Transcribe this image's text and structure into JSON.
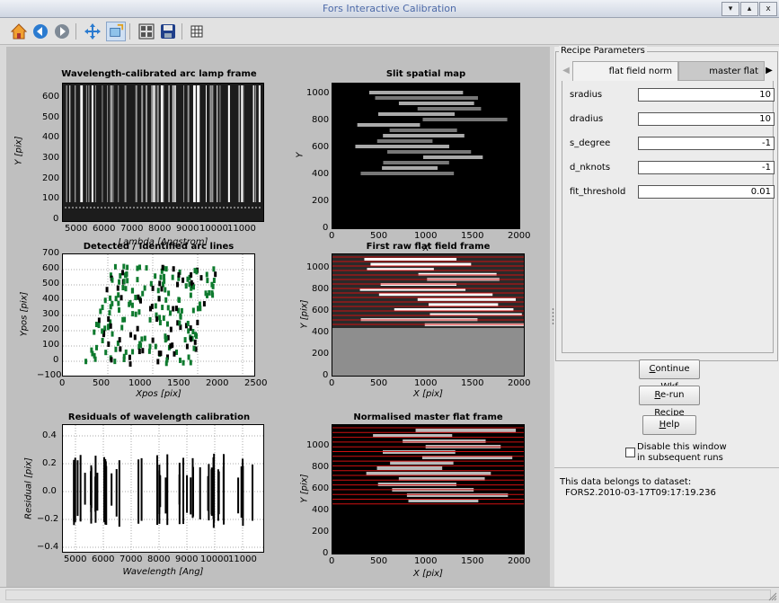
{
  "window": {
    "title": "Fors Interactive Calibration",
    "controls": [
      "▾",
      "▴",
      "x"
    ]
  },
  "toolbar": {
    "icons": [
      "home-icon",
      "back-icon",
      "forward-icon",
      "pan-icon",
      "zoom-icon",
      "configure-subplots-icon",
      "save-icon",
      "grid-icon"
    ]
  },
  "colors": {
    "green": "#0e7a2e",
    "red": "#d01010",
    "plotbg": "#bfbfbf"
  },
  "plots": {
    "p1": {
      "title": "Wavelength-calibrated arc lamp frame",
      "xlabel": "Lambda [Angstrom]",
      "ylabel": "Y [pix]",
      "xticks": [
        "5000",
        "6000",
        "7000",
        "8000",
        "9000",
        "10000",
        "11000"
      ],
      "yticks": [
        "0",
        "100",
        "200",
        "300",
        "400",
        "500",
        "600"
      ]
    },
    "p2": {
      "title": "Slit spatial map",
      "xlabel": "X",
      "ylabel": "Y",
      "xticks": [
        "0",
        "500",
        "1000",
        "1500",
        "2000"
      ],
      "yticks": [
        "0",
        "200",
        "400",
        "600",
        "800",
        "1000"
      ]
    },
    "p3": {
      "title": "Detected / Identified arc lines",
      "xlabel": "Xpos [pix]",
      "ylabel": "Ypos [pix]",
      "xticks": [
        "0",
        "500",
        "1000",
        "1500",
        "2000",
        "2500"
      ],
      "yticks": [
        "−100",
        "0",
        "100",
        "200",
        "300",
        "400",
        "500",
        "600",
        "700"
      ]
    },
    "p4": {
      "title": "First raw flat field frame",
      "xlabel": "X [pix]",
      "ylabel": "Y [pix]",
      "xticks": [
        "0",
        "500",
        "1000",
        "1500",
        "2000"
      ],
      "yticks": [
        "0",
        "200",
        "400",
        "600",
        "800",
        "1000"
      ]
    },
    "p5": {
      "title": "Residuals of wavelength calibration",
      "xlabel": "Wavelength [Ang]",
      "ylabel": "Residual [pix]",
      "xticks": [
        "5000",
        "6000",
        "7000",
        "8000",
        "9000",
        "10000",
        "11000"
      ],
      "yticks": [
        "−0.4",
        "−0.2",
        "0.0",
        "0.2",
        "0.4"
      ]
    },
    "p6": {
      "title": "Normalised master flat frame",
      "xlabel": "X [pix]",
      "ylabel": "Y [pix]",
      "xticks": [
        "0",
        "500",
        "1000",
        "1500",
        "2000"
      ],
      "yticks": [
        "0",
        "200",
        "400",
        "600",
        "800",
        "1000"
      ]
    }
  },
  "recipe": {
    "group_label": "Recipe Parameters",
    "tabs": [
      "flat field norm",
      "master flat"
    ],
    "params": [
      {
        "name": "sradius",
        "value": "10"
      },
      {
        "name": "dradius",
        "value": "10"
      },
      {
        "name": "s_degree",
        "value": "-1"
      },
      {
        "name": "d_nknots",
        "value": "-1"
      },
      {
        "name": "fit_threshold",
        "value": "0.01"
      }
    ]
  },
  "buttons": {
    "continue": {
      "first": "C",
      "rest": "ontinue Wkf"
    },
    "rerun": {
      "first": "R",
      "rest": "e-run Recipe"
    },
    "help": {
      "first": "H",
      "rest": "elp"
    }
  },
  "checkbox": {
    "label_line1": "Disable this window",
    "label_line2": "in subsequent runs"
  },
  "dataset": {
    "line1": "This data belongs to dataset:",
    "line2": "FORS2.2010-03-17T09:17:19.236"
  }
}
